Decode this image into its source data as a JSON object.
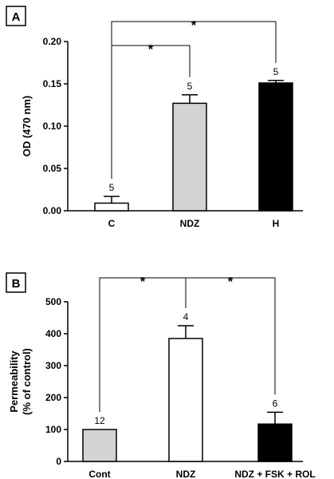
{
  "chart_data": [
    {
      "panel": "A",
      "type": "bar",
      "ylabel": "OD (470 nm)",
      "ylim": [
        0,
        0.2
      ],
      "yticks": [
        0.0,
        0.05,
        0.1,
        0.15,
        0.2
      ],
      "ytick_labels": [
        "0.00",
        "0.05",
        "0.10",
        "0.15",
        "0.20"
      ],
      "categories": [
        "C",
        "NDZ",
        "H"
      ],
      "values": [
        0.009,
        0.127,
        0.151
      ],
      "errors": [
        0.008,
        0.01,
        0.003
      ],
      "n_labels": [
        "5",
        "5",
        "5"
      ],
      "colors": [
        "#ffffff",
        "#d3d3d3",
        "#000000"
      ],
      "significance": [
        {
          "from": 0,
          "to": 1,
          "label": "*"
        },
        {
          "from": 0,
          "to": 2,
          "label": "*"
        }
      ]
    },
    {
      "panel": "B",
      "type": "bar",
      "ylabel": "Permeability\n(% of control)",
      "ylim": [
        0,
        500
      ],
      "yticks": [
        0,
        100,
        200,
        300,
        400,
        500
      ],
      "ytick_labels": [
        "0",
        "100",
        "200",
        "300",
        "400",
        "500"
      ],
      "categories": [
        "Cont",
        "NDZ",
        "NDZ + FSK + ROL"
      ],
      "values": [
        100,
        385,
        117
      ],
      "errors": [
        0,
        40,
        37
      ],
      "n_labels": [
        "12",
        "4",
        "6"
      ],
      "colors": [
        "#d3d3d3",
        "#ffffff",
        "#000000"
      ],
      "significance": [
        {
          "from": 0,
          "to": 1,
          "label": "*"
        },
        {
          "from": 1,
          "to": 2,
          "label": "*"
        }
      ]
    }
  ]
}
